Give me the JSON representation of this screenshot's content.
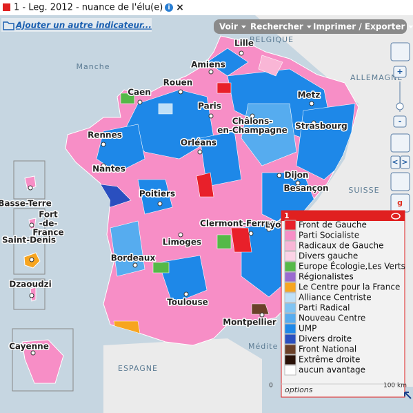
{
  "header": {
    "title": "1 - Leg. 2012 - nuance de l'élu(e)",
    "close": "×"
  },
  "toolbar": {
    "add_indicator": "Ajouter un autre indicateur...",
    "menus": [
      "Voir",
      "Rechercher",
      "Imprimer / Exporter"
    ]
  },
  "map": {
    "geo_labels": [
      "Manche",
      "BELGIQUE",
      "ALLEMAGNE",
      "SUISSE",
      "ESPAGNE",
      "Médite"
    ],
    "cities": [
      {
        "lines": [
          "Lille"
        ]
      },
      {
        "lines": [
          "Amiens"
        ]
      },
      {
        "lines": [
          "Caen"
        ]
      },
      {
        "lines": [
          "Rouen"
        ]
      },
      {
        "lines": [
          "Metz"
        ]
      },
      {
        "lines": [
          "Paris"
        ]
      },
      {
        "lines": [
          "Châlons-",
          "en-Champagne"
        ]
      },
      {
        "lines": [
          "Strasbourg"
        ]
      },
      {
        "lines": [
          "Rennes"
        ]
      },
      {
        "lines": [
          "Orléans"
        ]
      },
      {
        "lines": [
          "Nantes"
        ]
      },
      {
        "lines": [
          "Dijon"
        ]
      },
      {
        "lines": [
          "Besançon"
        ]
      },
      {
        "lines": [
          "Poitiers"
        ]
      },
      {
        "lines": [
          "Clermont-Ferrand"
        ]
      },
      {
        "lines": [
          "Lyo"
        ]
      },
      {
        "lines": [
          "Limoges"
        ]
      },
      {
        "lines": [
          "Bordeaux"
        ]
      },
      {
        "lines": [
          "Toulouse"
        ]
      },
      {
        "lines": [
          "Montpellier"
        ]
      },
      {
        "lines": [
          "Basse-Terre"
        ]
      },
      {
        "lines": [
          "Fort",
          "-de-",
          "France"
        ]
      },
      {
        "lines": [
          "Saint-Denis"
        ]
      },
      {
        "lines": [
          "Dzaoudzi"
        ]
      },
      {
        "lines": [
          "Cayenne"
        ]
      }
    ]
  },
  "legend": {
    "number": "1",
    "options": "options",
    "items": [
      {
        "label": "Front de Gauche",
        "color": "#e8202a"
      },
      {
        "label": "Parti Socialiste",
        "color": "#f78ec6"
      },
      {
        "label": "Radicaux de Gauche",
        "color": "#f9b6d6"
      },
      {
        "label": "Divers gauche",
        "color": "#fcd3e6"
      },
      {
        "label": "Europe Écologie,Les Verts",
        "color": "#55b948"
      },
      {
        "label": "Régionalistes",
        "color": "#9a6bd0"
      },
      {
        "label": "Le Centre pour la France",
        "color": "#f7a520"
      },
      {
        "label": "Alliance Centriste",
        "color": "#bfe0f7"
      },
      {
        "label": "Parti Radical",
        "color": "#80c4f2"
      },
      {
        "label": "Nouveau Centre",
        "color": "#56acef"
      },
      {
        "label": "UMP",
        "color": "#1e88e8"
      },
      {
        "label": "Divers droite",
        "color": "#2a4fbf"
      },
      {
        "label": "Front National",
        "color": "#6b4028"
      },
      {
        "label": "Extrême droite",
        "color": "#2a1208"
      },
      {
        "label": "aucun avantage",
        "color": "#ffffff"
      }
    ]
  },
  "scale": {
    "start": "0",
    "end": "100 km"
  }
}
